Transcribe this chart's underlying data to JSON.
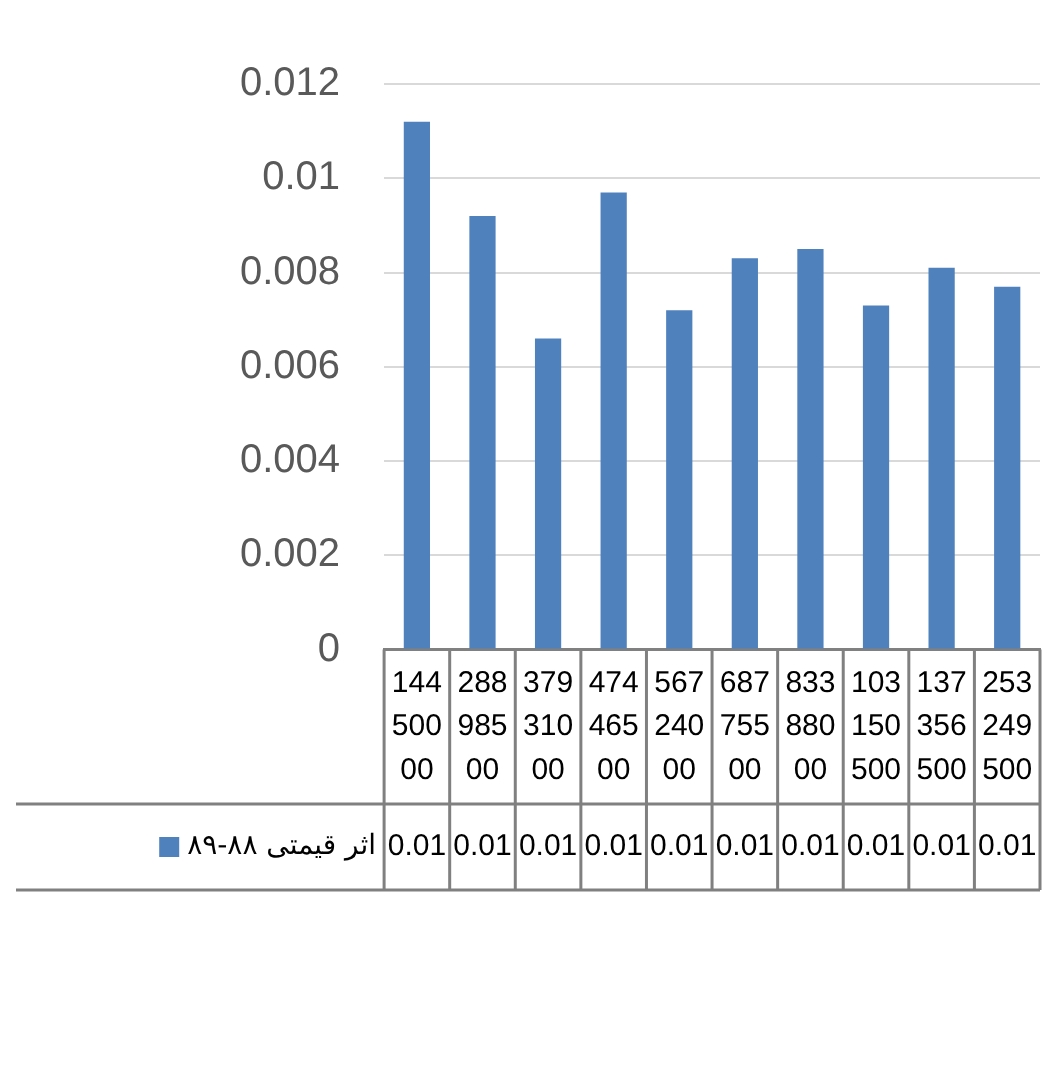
{
  "chart_data": {
    "type": "bar",
    "categories": [
      "14450000",
      "28898500",
      "37931000",
      "47446500",
      "56724000",
      "68775500",
      "83388000",
      "103150500",
      "137356500",
      "253249500"
    ],
    "series": [
      {
        "name": "اثر قیمتی ۸۸-۸۹",
        "color": "#4f81bd",
        "values": [
          0.0112,
          0.0092,
          0.0066,
          0.0097,
          0.0072,
          0.0083,
          0.0085,
          0.0073,
          0.0081,
          0.0077
        ],
        "value_labels": [
          "0.01",
          "0.01",
          "0.01",
          "0.01",
          "0.01",
          "0.01",
          "0.01",
          "0.01",
          "0.01",
          "0.01"
        ]
      }
    ],
    "ylim": [
      0,
      0.012
    ],
    "yticks": [
      0,
      0.002,
      0.004,
      0.006,
      0.008,
      0.01,
      0.012
    ],
    "grid": "y",
    "legend": "bottom"
  }
}
